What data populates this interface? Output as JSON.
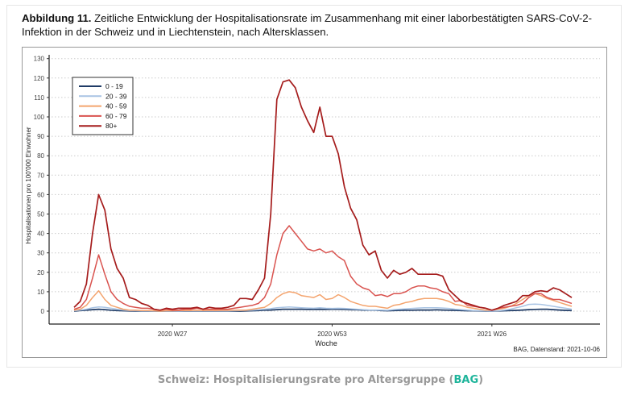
{
  "figure": {
    "label": "Abbildung 11.",
    "text": " Zeitliche Entwicklung der Hospitalisationsrate im Zusammenhang mit einer laborbestätigten SARS-CoV-2-Infektion in der Schweiz und in Liechtenstein, nach Altersklassen.",
    "source_note": "BAG, Datenstand: 2021-10-06"
  },
  "caption": {
    "prefix": "Schweiz: Hospitalisierungsrate pro Altersgruppe (",
    "link": "BAG",
    "suffix": ")"
  },
  "chart_data": {
    "type": "line",
    "xlabel": "Woche",
    "ylabel": "Hospitalisationen pro 100'000 Einwohner",
    "ylim": [
      -5,
      130
    ],
    "yticks": [
      0,
      10,
      20,
      30,
      40,
      50,
      60,
      70,
      80,
      90,
      100,
      110,
      120,
      130
    ],
    "x_range": [
      "2020 W11",
      "2021 W39"
    ],
    "xticks": [
      {
        "label": "2020 W27",
        "index": 16
      },
      {
        "label": "2020 W53",
        "index": 42
      },
      {
        "label": "2021 W26",
        "index": 68
      }
    ],
    "grid": "horizontal-dotted",
    "legend_position": "top-left",
    "series": [
      {
        "name": "0 - 19",
        "color": "#1f3b66",
        "values": [
          0,
          0.3,
          0.5,
          0.8,
          1,
          0.8,
          0.5,
          0.3,
          0.2,
          0.1,
          0,
          0,
          0,
          0,
          0,
          0,
          0,
          0,
          0,
          0,
          0,
          0,
          0,
          0,
          0,
          0,
          0,
          0,
          0.1,
          0.2,
          0.3,
          0.5,
          0.6,
          0.8,
          1,
          1,
          1,
          1,
          0.9,
          0.9,
          1,
          0.9,
          1,
          1,
          0.9,
          0.8,
          0.7,
          0.6,
          0.5,
          0.5,
          0.3,
          0.2,
          0.3,
          0.4,
          0.5,
          0.5,
          0.6,
          0.6,
          0.6,
          0.7,
          0.6,
          0.5,
          0.4,
          0.3,
          0.2,
          0.2,
          0.1,
          0,
          0,
          0.1,
          0.2,
          0.3,
          0.4,
          0.6,
          0.8,
          0.9,
          1,
          1,
          0.8,
          0.6,
          0.4,
          0.3
        ]
      },
      {
        "name": "20 - 39",
        "color": "#a9c4e4",
        "values": [
          0.2,
          0.5,
          1,
          1.8,
          2.2,
          2,
          1.5,
          1,
          0.6,
          0.3,
          0.2,
          0.1,
          0.1,
          0,
          0,
          0,
          0,
          0,
          0.1,
          0.1,
          0.1,
          0.1,
          0.1,
          0.1,
          0.1,
          0.1,
          0.2,
          0.3,
          0.4,
          0.5,
          0.7,
          1,
          1.3,
          1.8,
          2,
          2.2,
          2,
          1.8,
          1.6,
          1.5,
          1.8,
          1.5,
          1.4,
          1.5,
          1.4,
          1.2,
          1,
          0.8,
          0.6,
          0.6,
          0.5,
          0.4,
          0.8,
          1,
          1.2,
          1.4,
          1.6,
          1.8,
          1.8,
          1.8,
          1.6,
          1.4,
          1,
          0.8,
          0.5,
          0.3,
          0.2,
          0.1,
          0,
          0.2,
          0.5,
          1,
          1.8,
          2.5,
          3.5,
          3.6,
          3.5,
          3,
          2.5,
          2,
          1.5,
          1
        ]
      },
      {
        "name": "40 - 59",
        "color": "#f4a46e",
        "values": [
          0.5,
          1,
          3,
          7,
          10.5,
          6,
          3,
          2,
          1,
          0.5,
          0.5,
          0.3,
          0.3,
          0.2,
          0,
          0.2,
          0.2,
          0.3,
          0.3,
          0.3,
          0.4,
          0.3,
          0.4,
          0.3,
          0.4,
          0.4,
          0.5,
          0.5,
          0.5,
          1,
          1.5,
          2,
          4,
          7,
          9,
          10,
          9.5,
          8,
          7.5,
          7,
          8.5,
          6,
          6.5,
          8.5,
          7,
          5,
          4,
          3,
          2.5,
          2.5,
          2,
          1.5,
          3,
          3.5,
          4.5,
          5,
          6,
          6.5,
          6.5,
          6.5,
          6,
          5,
          3.5,
          3,
          2,
          1.5,
          1,
          0.5,
          0.5,
          1,
          1.5,
          2.5,
          4,
          6,
          8,
          9,
          8,
          6.5,
          5.5,
          4.5,
          3.5,
          2.5
        ]
      },
      {
        "name": "60 - 79",
        "color": "#d9534f",
        "values": [
          1,
          2,
          6,
          17,
          29,
          19,
          10,
          6,
          4,
          2.5,
          2,
          1.5,
          1.5,
          1,
          0.5,
          1,
          0.5,
          0.5,
          1,
          1,
          1.5,
          1,
          1,
          1,
          1,
          1,
          1.5,
          2,
          2.5,
          3,
          4,
          7,
          14,
          29,
          40,
          44,
          40,
          36,
          32,
          31,
          32,
          30,
          31,
          28,
          26,
          18,
          14,
          12,
          11,
          8,
          8.5,
          7.5,
          9,
          9,
          10,
          12,
          13,
          13,
          12,
          11.5,
          10,
          9,
          5,
          5.5,
          3,
          2.5,
          2,
          1.5,
          0.5,
          1.5,
          2,
          2.5,
          3,
          4,
          7,
          9,
          9,
          7,
          6,
          6,
          5,
          4
        ]
      },
      {
        "name": "80+",
        "color": "#a51c1c",
        "values": [
          2,
          5,
          14,
          40,
          60,
          52,
          32,
          22,
          17,
          7,
          6,
          4,
          3,
          1,
          0.5,
          1.5,
          1,
          1.5,
          1.5,
          1.5,
          2,
          1,
          2,
          1.5,
          1.5,
          2,
          3,
          6.5,
          6.5,
          6,
          11,
          17,
          50,
          109,
          118,
          119,
          115,
          105,
          98,
          92,
          105,
          90,
          90,
          81,
          64,
          53,
          47,
          34,
          29,
          31,
          21,
          17,
          21,
          19,
          20,
          22,
          19,
          19,
          19,
          19,
          18,
          11,
          8,
          5,
          4,
          3,
          2,
          1.5,
          0.5,
          1.5,
          3,
          4,
          5,
          8,
          8,
          10,
          10.5,
          10,
          12,
          11,
          9,
          7
        ]
      }
    ]
  }
}
